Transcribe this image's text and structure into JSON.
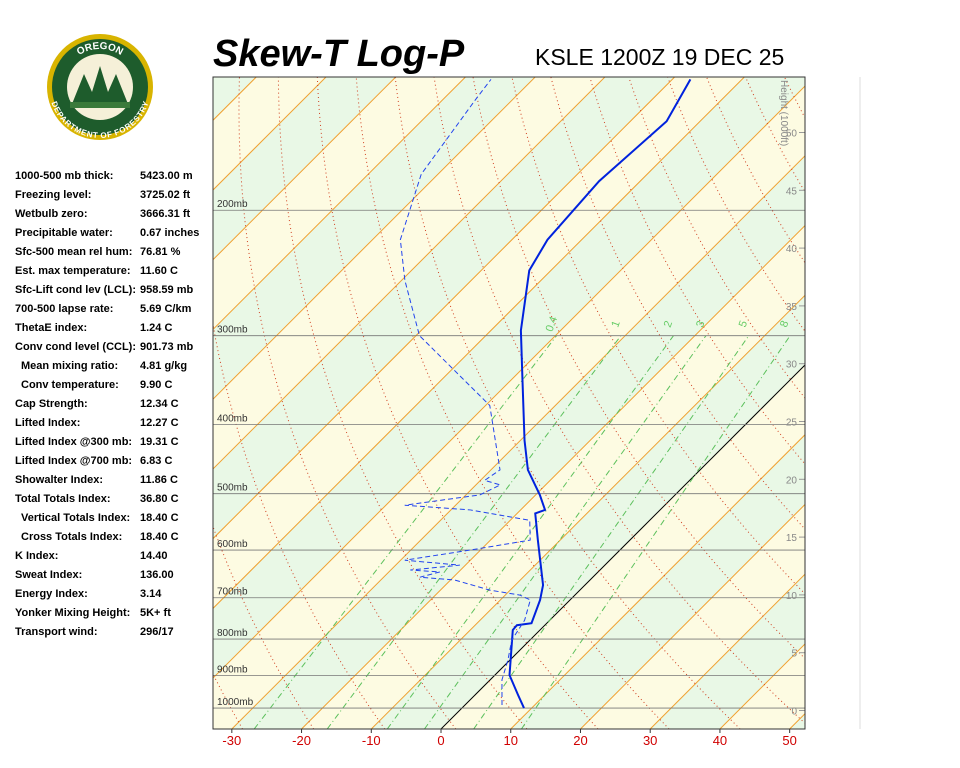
{
  "logo": {
    "top": "OREGON",
    "bottom": "DEPARTMENT OF FORESTRY"
  },
  "stats": [
    [
      "1000-500 mb thick:",
      "5423.00 m"
    ],
    [
      "Freezing level:",
      "3725.02 ft"
    ],
    [
      "Wetbulb zero:",
      "3666.31 ft"
    ],
    [
      "Precipitable water:",
      "0.67 inches"
    ],
    [
      "Sfc-500 mean rel hum:",
      "76.81 %"
    ],
    [
      "Est. max temperature:",
      "11.60 C"
    ],
    [
      "Sfc-Lift cond lev (LCL):",
      "958.59 mb"
    ],
    [
      "700-500 lapse rate:",
      "5.69 C/km"
    ],
    [
      "ThetaE index:",
      "1.24 C"
    ],
    [
      "Conv cond level (CCL):",
      "901.73 mb"
    ],
    [
      "Mean mixing ratio:",
      "4.81 g/kg"
    ],
    [
      "Conv temperature:",
      "9.90 C"
    ],
    [
      "Cap Strength:",
      "12.34 C"
    ],
    [
      "Lifted Index:",
      "12.27 C"
    ],
    [
      "Lifted Index @300 mb:",
      "19.31 C"
    ],
    [
      "Lifted Index @700 mb:",
      "6.83 C"
    ],
    [
      "Showalter Index:",
      "11.86 C"
    ],
    [
      "Total Totals Index:",
      "36.80 C"
    ],
    [
      "Vertical Totals Index:",
      "18.40 C"
    ],
    [
      "Cross Totals Index:",
      "18.40 C"
    ],
    [
      "K Index:",
      "14.40"
    ],
    [
      "Sweat Index:",
      "136.00"
    ],
    [
      "Energy Index:",
      "3.14"
    ],
    [
      "Yonker Mixing Height:",
      "5K+ ft"
    ],
    [
      "Transport wind:",
      "296/17"
    ]
  ],
  "chart_data": {
    "type": "skewt",
    "title": "Skew-T Log-P",
    "subtitle": "KSLE 1200Z 19 DEC 25",
    "xlim": [
      -32.7,
      52.2
    ],
    "xticks": [
      -30,
      -20,
      -10,
      0,
      10,
      20,
      30,
      40,
      50
    ],
    "ylim": [
      1070,
      130
    ],
    "yticks": [
      {
        "value": 1000,
        "label": "1000mb"
      },
      {
        "value": 900,
        "label": "900mb"
      },
      {
        "value": 800,
        "label": "800mb"
      },
      {
        "value": 700,
        "label": "700mb"
      },
      {
        "value": 600,
        "label": "600mb"
      },
      {
        "value": 500,
        "label": "500mb"
      },
      {
        "value": 400,
        "label": "400mb"
      },
      {
        "value": 300,
        "label": "300mb"
      },
      {
        "value": 200,
        "label": "200mb"
      }
    ],
    "height_label": "Height (1000ft)",
    "hlim": [
      -1.6,
      54.8
    ],
    "hticks": [
      0,
      5,
      10,
      15,
      20,
      25,
      30,
      35,
      40,
      45,
      50
    ],
    "mixing_ratios": [
      0.4,
      1,
      2,
      3,
      5,
      8
    ],
    "series": [
      {
        "color": "#0022dd",
        "dashed": false,
        "pressure": [
          1000,
          959,
          899,
          777,
          765,
          760,
          705,
          672,
          581,
          533,
          527,
          502,
          463,
          421,
          346,
          295,
          243,
          220,
          182,
          150,
          131
        ],
        "values": [
          8.9,
          6.2,
          2.1,
          -3.9,
          -4.0,
          -2.2,
          -4.3,
          -6.0,
          -13.2,
          -17.4,
          -16.5,
          -19.4,
          -24.7,
          -29.4,
          -38.4,
          -45.7,
          -53.1,
          -54.9,
          -55.9,
          -54.8,
          -57.4
        ]
      },
      {
        "color": "#2244ee",
        "dashed": true,
        "pressure": [
          990,
          913,
          856,
          803,
          753,
          705,
          694,
          683,
          661,
          655,
          644,
          640,
          630,
          620,
          600,
          581,
          545,
          527,
          519,
          502,
          486,
          479,
          463,
          376,
          300,
          251,
          220,
          178,
          140,
          131
        ],
        "values": [
          5.3,
          1.7,
          -0.3,
          -2.6,
          -3.6,
          -5.7,
          -7.9,
          -12.9,
          -19.4,
          -24.8,
          -22.7,
          -27.2,
          -20.8,
          -29.4,
          -21.5,
          -14.3,
          -17.2,
          -27.2,
          -37.3,
          -28.0,
          -26.5,
          -29.4,
          -28.7,
          -39.4,
          -59.5,
          -69.5,
          -76.0,
          -82.4,
          -85.3,
          -86.0
        ]
      }
    ]
  }
}
